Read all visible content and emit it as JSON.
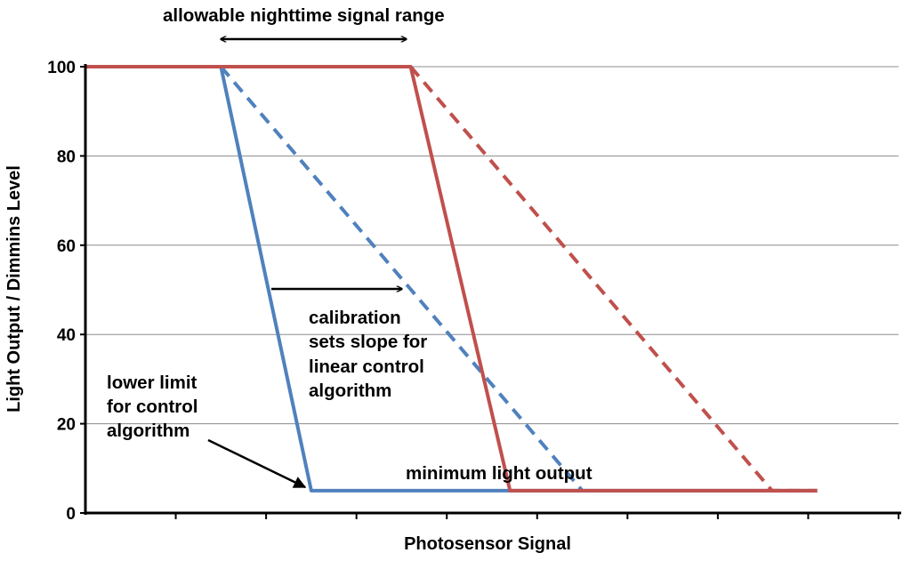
{
  "chart_data": {
    "type": "line",
    "title": "",
    "xlabel": "Photosensor Signal",
    "ylabel": "Light Output / Dimmins Level",
    "xlim": [
      0,
      9
    ],
    "ylim": [
      0,
      100
    ],
    "y_ticks": [
      "0",
      "20",
      "40",
      "60",
      "80",
      "100"
    ],
    "grid": "horizontal",
    "legend": "none",
    "series": [
      {
        "color": "#4F81BD",
        "style": "solid",
        "points": [
          [
            0,
            100
          ],
          [
            1.5,
            100
          ],
          [
            2.5,
            5
          ],
          [
            8.1,
            5
          ]
        ]
      },
      {
        "color": "#4F81BD",
        "style": "dashed",
        "points": [
          [
            1.5,
            100
          ],
          [
            5.5,
            5
          ]
        ]
      },
      {
        "color": "#C0504D",
        "style": "solid",
        "points": [
          [
            0,
            100
          ],
          [
            3.6,
            100
          ],
          [
            4.7,
            5
          ],
          [
            8.1,
            5
          ]
        ]
      },
      {
        "color": "#C0504D",
        "style": "dashed",
        "points": [
          [
            3.6,
            100
          ],
          [
            7.6,
            5
          ],
          [
            8.1,
            5
          ]
        ]
      }
    ],
    "annotations": {
      "range": {
        "text": "allowable nighttime signal range"
      },
      "calibration": {
        "lines": [
          "calibration",
          "sets slope for",
          "linear  control",
          "algorithm"
        ]
      },
      "lower_limit": {
        "lines": [
          "lower limit",
          "for control",
          "algorithm"
        ]
      },
      "minimum": {
        "text": "minimum  light output"
      }
    }
  }
}
